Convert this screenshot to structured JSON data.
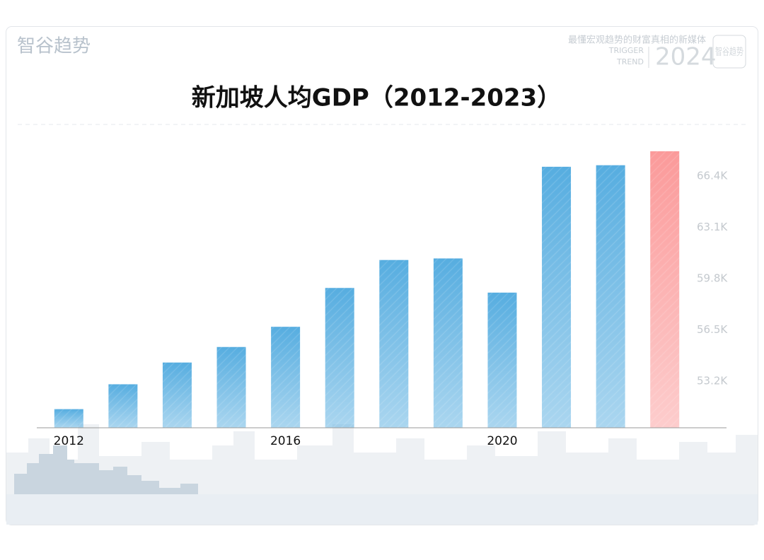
{
  "header": {
    "logo": "智谷趋势",
    "slogan": "最懂宏观趋势的财富真相的新媒体",
    "brand_line1": "TRIGGER",
    "brand_line2": "TREND",
    "year": "2024",
    "badge": "智谷趋势"
  },
  "chart_data": {
    "type": "bar",
    "title": "新加坡人均GDP（2012-2023）",
    "categories": [
      "2012",
      null,
      null,
      null,
      "2016",
      null,
      null,
      null,
      "2020",
      null,
      null,
      null
    ],
    "values": [
      51.4,
      53.0,
      54.4,
      55.4,
      56.7,
      59.2,
      61.0,
      61.1,
      58.9,
      67.0,
      67.1,
      68.0
    ],
    "colors": [
      "#56ade0",
      "#56ade0",
      "#56ade0",
      "#56ade0",
      "#56ade0",
      "#56ade0",
      "#56ade0",
      "#56ade0",
      "#56ade0",
      "#56ade0",
      "#56ade0",
      "#fb9a9a"
    ],
    "ylim": [
      50.2,
      68.6
    ],
    "yticks": [
      {
        "value": 53.2,
        "label": "53.2K"
      },
      {
        "value": 56.5,
        "label": "56.5K"
      },
      {
        "value": 59.8,
        "label": "59.8K"
      },
      {
        "value": 63.1,
        "label": "63.1K"
      },
      {
        "value": 66.4,
        "label": "66.4K"
      }
    ],
    "y_axis_side": "right",
    "grid": false
  }
}
